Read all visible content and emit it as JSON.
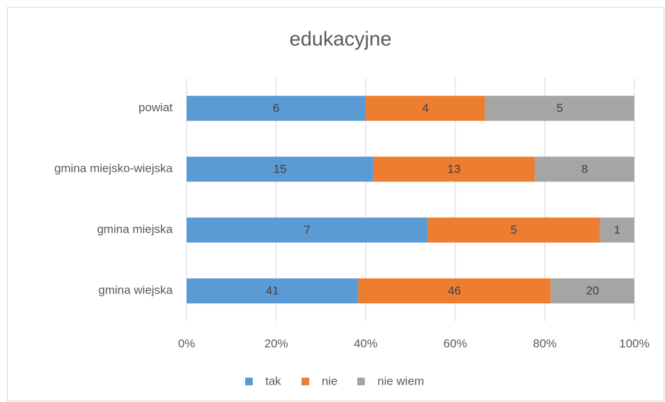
{
  "chart_data": {
    "type": "bar",
    "orientation": "horizontal",
    "stacked": "percent",
    "title": "edukacyjne",
    "categories": [
      "powiat",
      "gmina miejsko-wiejska",
      "gmina miejska",
      "gmina wiejska"
    ],
    "series": [
      {
        "name": "tak",
        "color": "#5b9bd5",
        "values": [
          6,
          15,
          7,
          41
        ]
      },
      {
        "name": "nie",
        "color": "#ed7d31",
        "values": [
          4,
          13,
          5,
          46
        ]
      },
      {
        "name": "nie wiem",
        "color": "#a5a5a5",
        "values": [
          5,
          8,
          1,
          20
        ]
      }
    ],
    "xlim": [
      0,
      100
    ],
    "xticks": [
      {
        "value": 0,
        "label": "0%"
      },
      {
        "value": 20,
        "label": "20%"
      },
      {
        "value": 40,
        "label": "40%"
      },
      {
        "value": 60,
        "label": "60%"
      },
      {
        "value": 80,
        "label": "80%"
      },
      {
        "value": 100,
        "label": "100%"
      }
    ],
    "grid": true,
    "legend": "bottom"
  }
}
